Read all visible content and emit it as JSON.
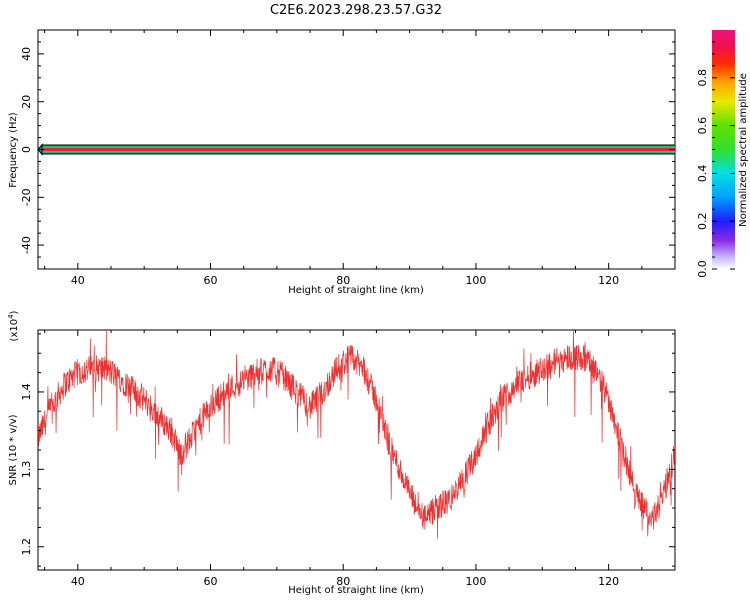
{
  "title": "C2E6.2023.298.23.57.G32",
  "colors": {
    "snr_line": "#f03030",
    "band_center": "#e8106c",
    "band_inner": "#f03030",
    "band_mid": "#30e030",
    "band_edge": "#00a0a0",
    "band_outline": "#000000"
  },
  "chart_data": [
    {
      "id": "spectrogram",
      "type": "heatmap",
      "xlabel": "Height of straight line (km)",
      "ylabel": "Frequency (Hz)",
      "xlim": [
        34,
        130
      ],
      "ylim": [
        -50,
        50
      ],
      "xticks": [
        40,
        60,
        80,
        100,
        120
      ],
      "yticks": [
        -40,
        -20,
        0,
        20,
        40
      ],
      "ytick_labels": [
        "-40",
        "-20",
        "0",
        "20",
        "40"
      ],
      "band": {
        "center_hz": 0,
        "x_start": 34,
        "x_end": 130
      },
      "colorbar": {
        "label": "Normalized spectral amplitude",
        "range": [
          0,
          1
        ],
        "ticks": [
          0.0,
          0.2,
          0.4,
          0.6,
          0.8
        ],
        "tick_labels": [
          "0.0",
          "0.2",
          "0.4",
          "0.6",
          "0.8"
        ],
        "colormap": "rainbow (white - violet - blue - cyan - green - yellow - orange - red - magenta)"
      }
    },
    {
      "id": "snr",
      "type": "line",
      "xlabel": "Height of straight line (km)",
      "ylabel": "SNR (10 * v/v)",
      "scale_label": "(x10",
      "scale_exp": "4",
      "scale_close": ")",
      "xlim": [
        34,
        130
      ],
      "ylim": [
        1.17,
        1.48
      ],
      "xticks": [
        40,
        60,
        80,
        100,
        120
      ],
      "yticks": [
        1.2,
        1.3,
        1.4
      ],
      "ytick_labels": [
        "1.2",
        "1.3",
        "1.4"
      ],
      "trend": {
        "x": [
          34,
          36,
          38,
          40,
          42,
          44,
          46,
          48,
          50,
          52,
          54,
          55.5,
          57,
          59,
          61,
          63,
          65,
          67,
          69,
          71,
          73,
          75,
          77,
          79,
          81,
          83,
          85,
          87,
          89,
          91,
          92.5,
          94,
          96,
          98,
          100,
          102,
          104,
          106,
          108,
          110,
          112,
          114,
          116,
          118,
          120,
          122,
          124,
          126,
          127,
          128,
          129,
          130
        ],
        "y": [
          1.34,
          1.38,
          1.41,
          1.425,
          1.43,
          1.43,
          1.42,
          1.405,
          1.39,
          1.37,
          1.35,
          1.32,
          1.34,
          1.37,
          1.39,
          1.405,
          1.415,
          1.425,
          1.43,
          1.42,
          1.4,
          1.38,
          1.4,
          1.43,
          1.445,
          1.43,
          1.39,
          1.33,
          1.29,
          1.25,
          1.235,
          1.25,
          1.26,
          1.285,
          1.32,
          1.36,
          1.39,
          1.41,
          1.42,
          1.43,
          1.44,
          1.445,
          1.445,
          1.43,
          1.39,
          1.33,
          1.27,
          1.24,
          1.24,
          1.26,
          1.29,
          1.32
        ]
      },
      "noise_amplitude": 0.018
    }
  ]
}
